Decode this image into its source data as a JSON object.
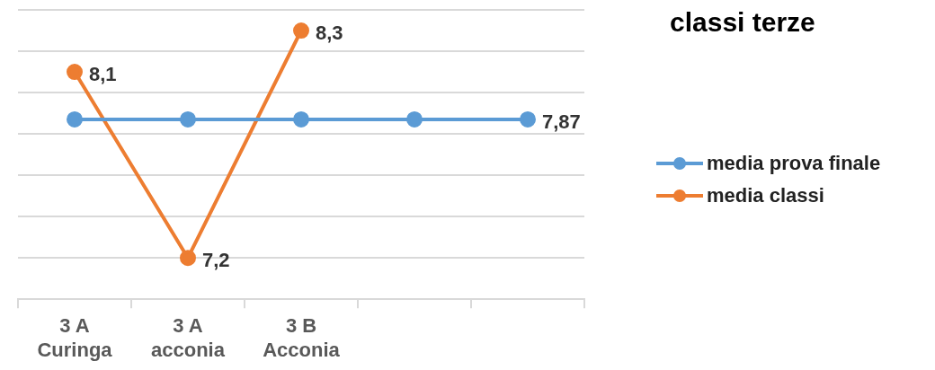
{
  "chart_data": {
    "type": "line",
    "title": "classi terze",
    "categories": [
      "3 A\nCuringa",
      "3 A\nacconia",
      "3 B\nAcconia",
      null,
      null
    ],
    "series": [
      {
        "name": "media prova finale",
        "color": "#5b9bd5",
        "values": [
          7.87,
          7.87,
          7.87,
          7.87,
          7.87
        ],
        "value_labels": [
          null,
          null,
          null,
          null,
          "7,87"
        ]
      },
      {
        "name": "media classi",
        "color": "#ed7d31",
        "values": [
          8.1,
          7.2,
          8.3,
          null,
          null
        ],
        "value_labels": [
          "8,1",
          "7,2",
          "8,3",
          null,
          null
        ]
      }
    ],
    "ylim": [
      7,
      8.4
    ],
    "yticks": [
      {
        "value": 7,
        "label": null
      },
      {
        "value": 7.2,
        "label": null
      },
      {
        "value": 7.4,
        "label": null
      },
      {
        "value": 7.6,
        "label": null
      },
      {
        "value": 7.8,
        "label": null
      },
      {
        "value": 8,
        "label": null
      },
      {
        "value": 8.2,
        "label": null
      },
      {
        "value": 8.4,
        "label": null
      }
    ],
    "tick_labels": "x",
    "grid": "y",
    "legend": "right",
    "marker": "circle",
    "line_style": "solid"
  }
}
